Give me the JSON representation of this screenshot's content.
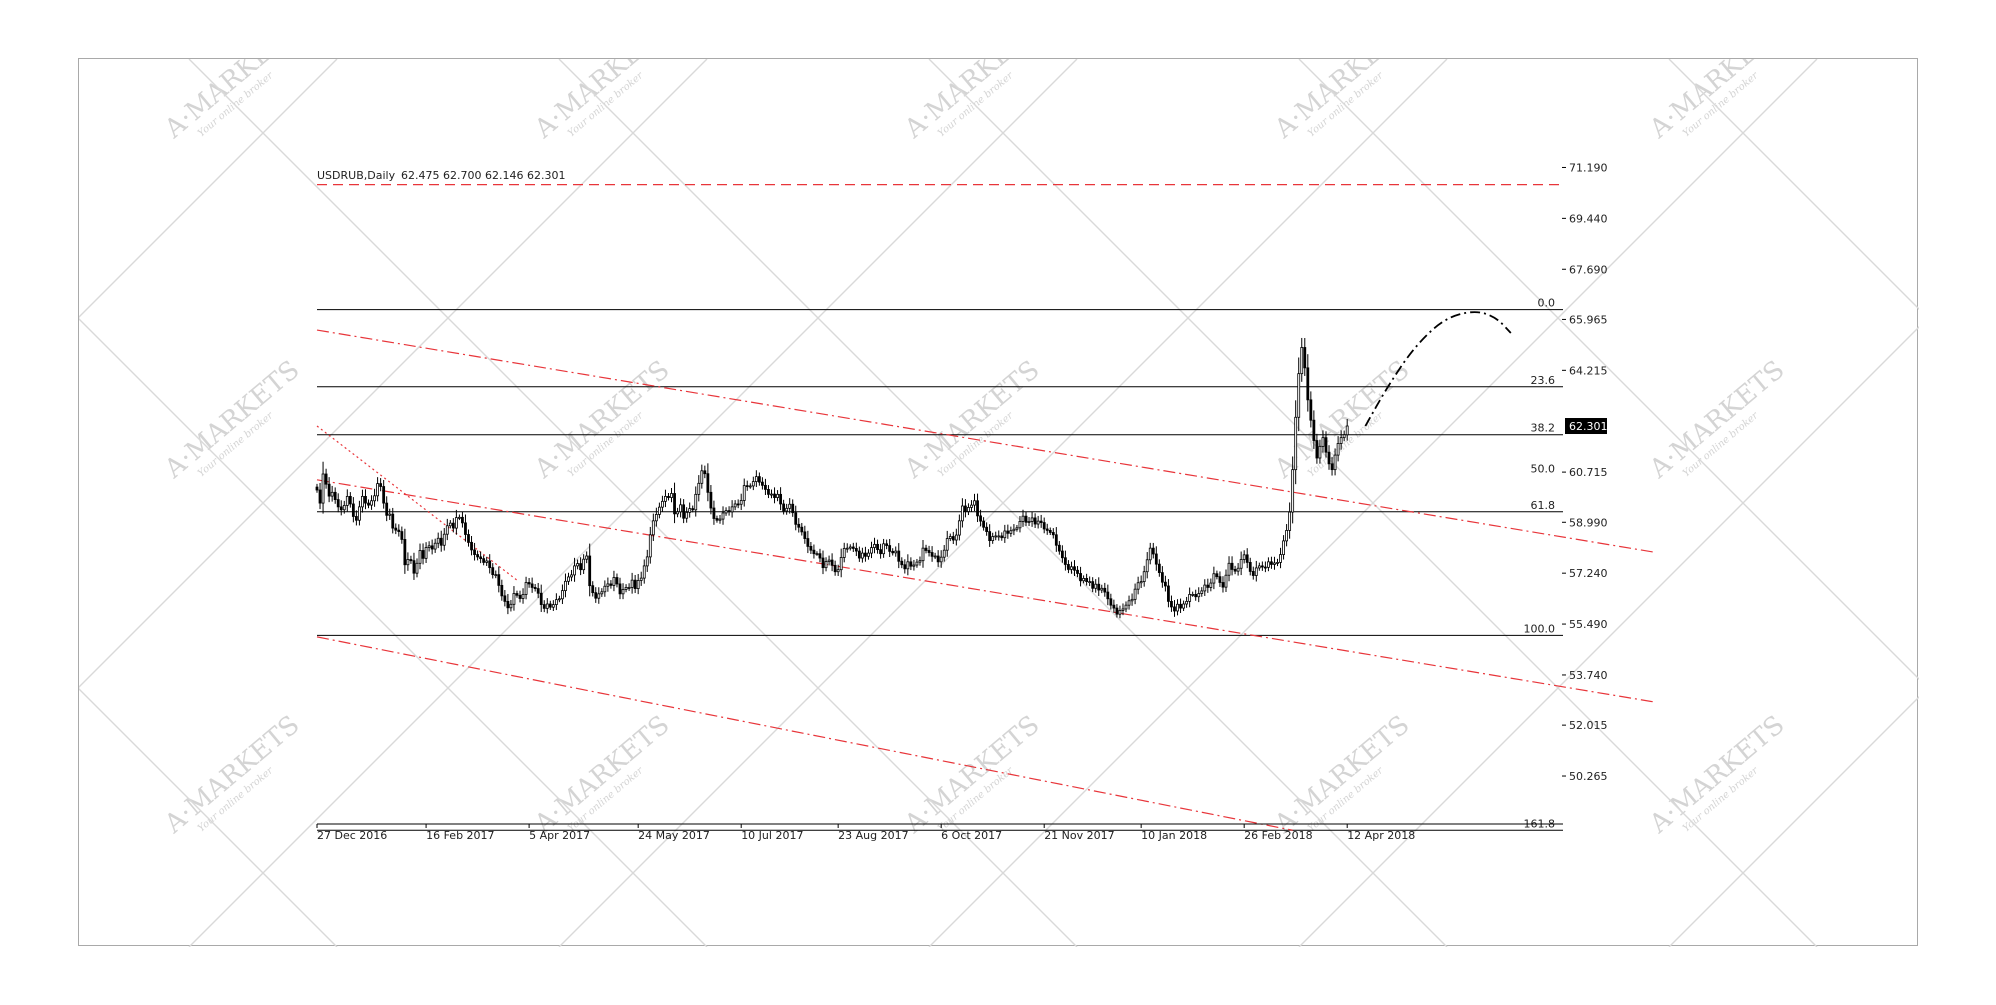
{
  "header": {
    "instrument": "USDRUB,Daily",
    "ohlc": "62.475 62.700 62.146 62.301"
  },
  "watermark": {
    "brand": "A·MARKETS",
    "tagline": "Your online broker"
  },
  "colors": {
    "candle": "#000000",
    "trendline": "#e8353a",
    "fib_line": "#000000",
    "price_box": "#000000",
    "grid_watermark": "#d9d9d9"
  },
  "chart_data": {
    "type": "candlestick",
    "title": "USDRUB,Daily",
    "ohlc_last": {
      "open": 62.475,
      "high": 62.7,
      "low": 62.146,
      "close": 62.301
    },
    "current_price_label": "62.301",
    "y_ticks": [
      "71.190",
      "69.440",
      "67.690",
      "65.965",
      "64.215",
      "60.715",
      "58.990",
      "57.240",
      "55.490",
      "53.740",
      "52.015",
      "50.265"
    ],
    "y_tick_values": [
      71.19,
      69.44,
      67.69,
      65.965,
      64.215,
      60.715,
      58.99,
      57.24,
      55.49,
      53.74,
      52.015,
      50.265
    ],
    "ylim": [
      49.2,
      72.1
    ],
    "x_labels": [
      "27 Dec 2016",
      "16 Feb 2017",
      "5 Apr 2017",
      "24 May 2017",
      "10 Jul 2017",
      "23 Aug 2017",
      "6 Oct 2017",
      "21 Nov 2017",
      "10 Jan 2018",
      "26 Feb 2018",
      "12 Apr 2018"
    ],
    "x_label_bars": [
      0,
      36,
      70,
      106,
      140,
      172,
      206,
      240,
      272,
      306,
      340
    ],
    "bars_total": 360,
    "fibonacci": [
      {
        "label": "0.0",
        "price": 66.3
      },
      {
        "label": "23.6",
        "price": 63.65
      },
      {
        "label": "38.2",
        "price": 62.0
      },
      {
        "label": "50.0",
        "price": 60.6
      },
      {
        "label": "61.8",
        "price": 59.35
      },
      {
        "label": "100.0",
        "price": 55.1
      },
      {
        "label": "161.8",
        "price": 48.4
      }
    ],
    "fib_solid_lines": [
      66.3,
      63.65,
      62.0,
      59.35,
      55.1,
      48.4
    ],
    "resistance_dashed_price": 70.6,
    "trendlines": [
      {
        "style": "dashdot",
        "from": [
          0,
          65.6
        ],
        "to": [
          442,
          57.95
        ]
      },
      {
        "style": "dashdot",
        "from": [
          0,
          60.45
        ],
        "to": [
          442,
          52.8
        ]
      },
      {
        "style": "dashdot",
        "from": [
          0,
          55.05
        ],
        "to": [
          322,
          48.4
        ]
      },
      {
        "style": "dotted",
        "from": [
          0,
          62.3
        ],
        "to": [
          66,
          57.0
        ]
      }
    ],
    "projection_path": [
      [
        346,
        62.3
      ],
      [
        353,
        63.6
      ],
      [
        362,
        65.0
      ],
      [
        372,
        66.0
      ],
      [
        382,
        66.28
      ],
      [
        389,
        66.05
      ],
      [
        394,
        65.5
      ]
    ],
    "series": [
      {
        "type": "candlestick",
        "closes": [
          60.1,
          59.65,
          60.65,
          60.3,
          59.89,
          60.02,
          59.77,
          59.52,
          59.42,
          59.57,
          59.88,
          59.62,
          59.19,
          59.06,
          59.52,
          59.88,
          59.65,
          59.58,
          59.73,
          59.9,
          60.32,
          60.22,
          59.65,
          59.23,
          59.27,
          58.79,
          58.72,
          58.67,
          58.4,
          57.53,
          57.71,
          57.67,
          57.24,
          57.58,
          58.02,
          57.75,
          58.12,
          58.18,
          58.07,
          58.27,
          58.44,
          58.2,
          58.58,
          58.87,
          58.96,
          58.79,
          59.15,
          59.16,
          58.97,
          58.57,
          58.3,
          58.04,
          57.88,
          57.8,
          57.74,
          57.61,
          57.66,
          57.43,
          57.19,
          57.19,
          56.82,
          56.46,
          56.27,
          56.05,
          56.17,
          56.54,
          56.48,
          56.37,
          56.51,
          56.92,
          56.87,
          56.75,
          56.71,
          56.55,
          56.16,
          56.03,
          56.18,
          56.07,
          56.16,
          56.33,
          56.36,
          56.64,
          56.96,
          57.11,
          57.18,
          57.49,
          57.57,
          57.36,
          57.72,
          57.83,
          56.81,
          56.57,
          56.38,
          56.53,
          56.6,
          56.79,
          56.87,
          56.82,
          57.09,
          56.87,
          56.53,
          56.68,
          56.75,
          56.75,
          57.0,
          56.71,
          56.99,
          57.07,
          57.49,
          57.8,
          58.56,
          59.04,
          59.26,
          59.51,
          59.71,
          59.88,
          59.84,
          59.98,
          59.28,
          59.35,
          59.59,
          59.13,
          59.33,
          59.46,
          59.42,
          59.95,
          60.33,
          60.76,
          60.66,
          60.02,
          59.48,
          59.12,
          59.06,
          59.1,
          59.31,
          59.39,
          59.35,
          59.52,
          59.62,
          59.61,
          59.74,
          60.25,
          60.22,
          60.24,
          60.39,
          60.56,
          60.37,
          60.26,
          60.12,
          59.95,
          59.96,
          59.84,
          59.95,
          59.62,
          59.38,
          59.47,
          59.61,
          59.32,
          58.92,
          58.82,
          58.66,
          58.43,
          58.16,
          58.03,
          57.91,
          57.91,
          57.76,
          57.43,
          57.64,
          57.69,
          57.51,
          57.29,
          57.36,
          57.78,
          58.09,
          58.1,
          58.14,
          58.09,
          58.0,
          57.76,
          57.93,
          57.82,
          57.93,
          58.12,
          58.23,
          58.05,
          57.91,
          58.25,
          58.19,
          57.99,
          57.94,
          58.0,
          57.65,
          57.53,
          57.39,
          57.63,
          57.48,
          57.52,
          57.62,
          57.67,
          58.1,
          58.02,
          57.95,
          57.82,
          57.83,
          57.63,
          57.79,
          58.03,
          58.43,
          58.5,
          58.38,
          58.55,
          59.04,
          59.55,
          59.36,
          59.5,
          59.58,
          59.73,
          59.21,
          59.03,
          58.82,
          58.67,
          58.36,
          58.5,
          58.52,
          58.52,
          58.46,
          58.69,
          58.61,
          58.7,
          58.75,
          58.8,
          59.02,
          59.2,
          58.99,
          59.02,
          59.14,
          58.93,
          59.03,
          58.98,
          58.76,
          58.71,
          58.64,
          58.56,
          58.2,
          58.0,
          57.77,
          57.54,
          57.37,
          57.46,
          57.34,
          57.23,
          56.98,
          57.06,
          56.95,
          56.95,
          56.72,
          56.86,
          56.66,
          56.72,
          56.59,
          56.36,
          56.14,
          56.04,
          55.83,
          55.96,
          56.01,
          56.14,
          56.29,
          56.34,
          56.69,
          56.91,
          56.95,
          57.29,
          57.7,
          58.1,
          57.9,
          57.55,
          57.26,
          56.93,
          56.8,
          56.27,
          56.08,
          55.94,
          56.17,
          56.04,
          56.18,
          56.27,
          56.51,
          56.51,
          56.43,
          56.54,
          56.63,
          56.83,
          56.75,
          56.9,
          57.22,
          57.12,
          56.92,
          56.76,
          57.17,
          57.58,
          57.37,
          57.31,
          57.41,
          57.71,
          57.87,
          57.61,
          57.3,
          57.16,
          57.42,
          57.49,
          57.45,
          57.44,
          57.63,
          57.54,
          57.59,
          57.61,
          57.88,
          58.35,
          58.71,
          59.34,
          60.8,
          62.6,
          64.1,
          65.0,
          64.3,
          63.2,
          62.5,
          61.8,
          61.2,
          61.6,
          61.9,
          61.4,
          61.0,
          60.8,
          61.3,
          61.7,
          61.9,
          62.0,
          62.3
        ]
      }
    ]
  }
}
